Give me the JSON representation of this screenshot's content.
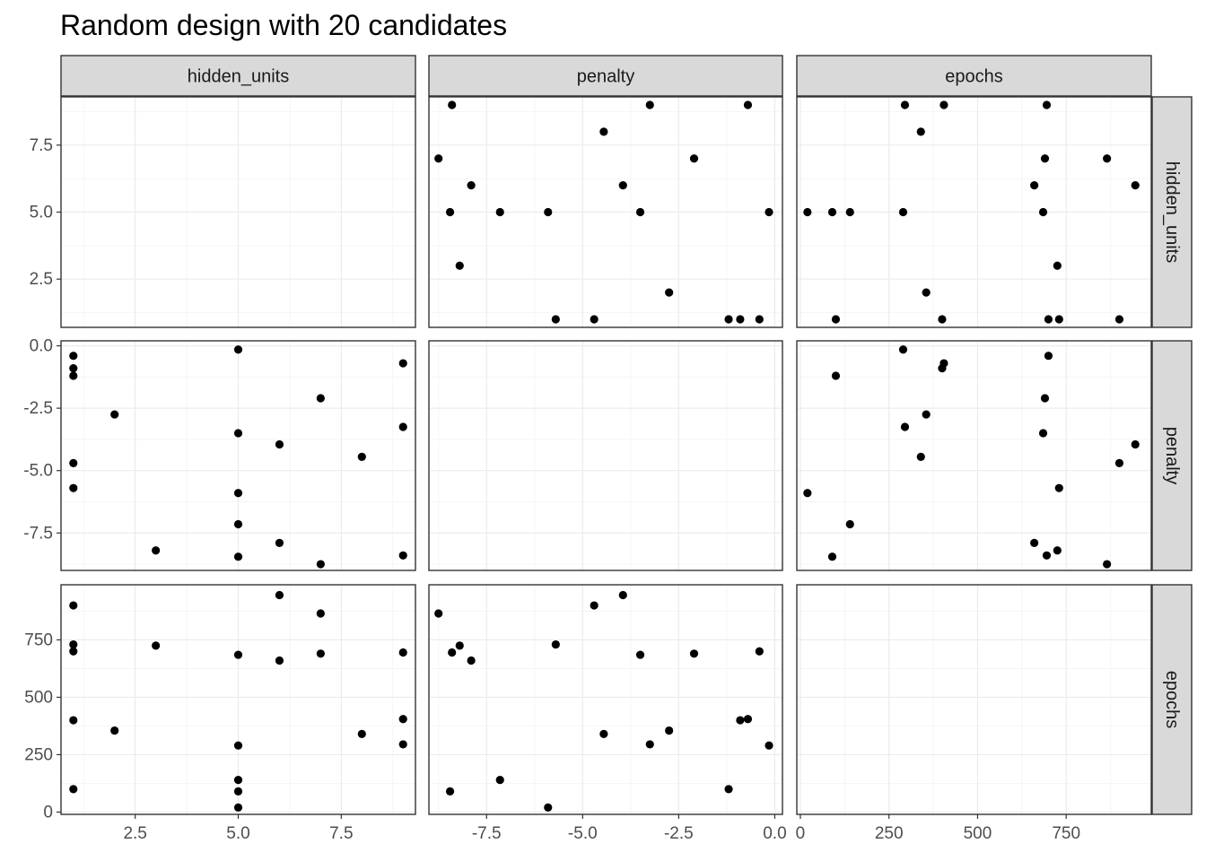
{
  "chart_data": {
    "type": "scatter",
    "title": "Random design with 20 candidates",
    "variables": [
      "hidden_units",
      "penalty",
      "epochs"
    ],
    "grid": true,
    "axes": {
      "hidden_units": {
        "range": [
          0.7,
          9.3
        ],
        "ticks": [
          2.5,
          5.0,
          7.5
        ],
        "tick_labels": [
          "2.5",
          "5.0",
          "7.5"
        ]
      },
      "penalty": {
        "range": [
          -9.0,
          0.2
        ],
        "ticks": [
          -7.5,
          -5.0,
          -2.5,
          0.0
        ],
        "tick_labels": [
          "-7.5",
          "-5.0",
          "-2.5",
          "0.0"
        ]
      },
      "epochs": {
        "range": [
          -10,
          990
        ],
        "ticks": [
          0,
          250,
          500,
          750
        ],
        "tick_labels": [
          "0",
          "250",
          "500",
          "750"
        ]
      }
    },
    "points": [
      {
        "hidden_units": 1,
        "penalty": -0.4,
        "epochs": 700
      },
      {
        "hidden_units": 1,
        "penalty": -0.9,
        "epochs": 400
      },
      {
        "hidden_units": 1,
        "penalty": -1.2,
        "epochs": 100
      },
      {
        "hidden_units": 1,
        "penalty": -4.7,
        "epochs": 900
      },
      {
        "hidden_units": 1,
        "penalty": -5.7,
        "epochs": 730
      },
      {
        "hidden_units": 2,
        "penalty": -2.75,
        "epochs": 355
      },
      {
        "hidden_units": 3,
        "penalty": -8.2,
        "epochs": 725
      },
      {
        "hidden_units": 5,
        "penalty": -0.15,
        "epochs": 290
      },
      {
        "hidden_units": 5,
        "penalty": -3.5,
        "epochs": 685
      },
      {
        "hidden_units": 5,
        "penalty": -5.9,
        "epochs": 20
      },
      {
        "hidden_units": 5,
        "penalty": -7.15,
        "epochs": 140
      },
      {
        "hidden_units": 5,
        "penalty": -8.45,
        "epochs": 90
      },
      {
        "hidden_units": 6,
        "penalty": -3.95,
        "epochs": 945
      },
      {
        "hidden_units": 6,
        "penalty": -7.9,
        "epochs": 660
      },
      {
        "hidden_units": 7,
        "penalty": -2.1,
        "epochs": 690
      },
      {
        "hidden_units": 7,
        "penalty": -8.75,
        "epochs": 865
      },
      {
        "hidden_units": 8,
        "penalty": -4.45,
        "epochs": 340
      },
      {
        "hidden_units": 9,
        "penalty": -0.7,
        "epochs": 405
      },
      {
        "hidden_units": 9,
        "penalty": -3.25,
        "epochs": 295
      },
      {
        "hidden_units": 9,
        "penalty": -8.4,
        "epochs": 695
      }
    ],
    "colors": {
      "point": "#000000",
      "strip": "#d9d9d9",
      "grid_major": "#ebebeb",
      "grid_minor": "#f5f5f5",
      "panel_border": "#333333"
    }
  }
}
